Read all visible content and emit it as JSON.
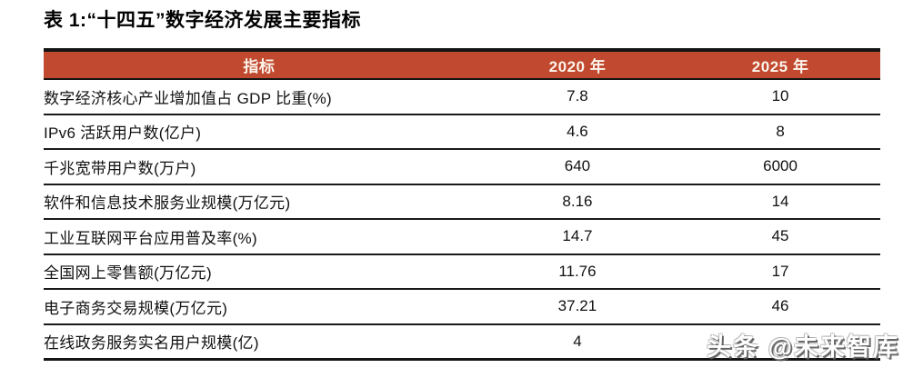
{
  "title": "表 1:“十四五”数字经济发展主要指标",
  "colors": {
    "header_bg": "#C1492F",
    "header_text": "#FCF5EC",
    "border": "#141414",
    "body_text": "#111111",
    "watermark_text": "#FFFFFF"
  },
  "table": {
    "header": {
      "indicator_label": "指标",
      "year_2020_label": "2020 年",
      "year_2025_label": "2025 年"
    },
    "rows": [
      {
        "indicator": "数字经济核心产业增加值占 GDP 比重(%)",
        "y2020": "7.8",
        "y2025": "10"
      },
      {
        "indicator": "IPv6 活跃用户数(亿户)",
        "y2020": "4.6",
        "y2025": "8"
      },
      {
        "indicator": "千兆宽带用户数(万户)",
        "y2020": "640",
        "y2025": "6000"
      },
      {
        "indicator": "软件和信息技术服务业规模(万亿元)",
        "y2020": "8.16",
        "y2025": "14"
      },
      {
        "indicator": "工业互联网平台应用普及率(%)",
        "y2020": "14.7",
        "y2025": "45"
      },
      {
        "indicator": "全国网上零售额(万亿元)",
        "y2020": "11.76",
        "y2025": "17"
      },
      {
        "indicator": "电子商务交易规模(万亿元)",
        "y2020": "37.21",
        "y2025": "46"
      },
      {
        "indicator": "在线政务服务实名用户规模(亿)",
        "y2020": "4",
        "y2025": ""
      }
    ]
  },
  "watermark": {
    "text": "头条 @未来智库"
  }
}
